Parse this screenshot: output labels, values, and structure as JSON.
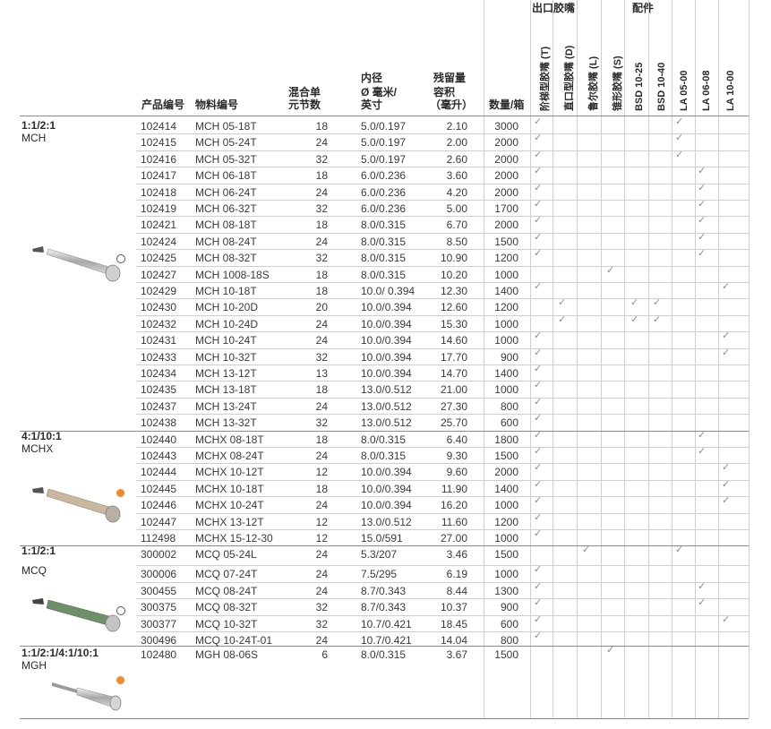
{
  "header": {
    "product_no": "产品编号",
    "material_no": "物料编号",
    "elements_l1": "混合单",
    "elements_l2": "元节数",
    "diameter_l1": "内径",
    "diameter_l2": "Ø 毫米/",
    "diameter_l3": "英寸",
    "hold_l1": "残留量",
    "hold_l2": "容积",
    "hold_l3": "（毫升）",
    "qty": "数量/箱",
    "outlet_group": "出口胶嘴",
    "accessory_group": "配件",
    "outlet_cols": [
      "阶梯型胶嘴 (T)",
      "直口型胶嘴 (D)",
      "鲁尔胶嘴 (L)",
      "锥形胶嘴 (S)"
    ],
    "accessory_cols": [
      "BSD 10-25",
      "BSD 10-40",
      "LA 05-00",
      "LA 06-08",
      "LA 10-00"
    ]
  },
  "check_mark": "✓",
  "groups": [
    {
      "ratio": "1:1/2:1",
      "name": "MCH",
      "dot": "open"
    },
    {
      "ratio": "4:1/10:1",
      "name": "MCHX",
      "dot": "fill"
    },
    {
      "ratio": "1:1/2:1",
      "name": "MCQ",
      "dot": "open"
    },
    {
      "ratio": "1:1/2:1/4:1/10:1",
      "name": "MGH",
      "dot": "fill"
    }
  ],
  "rows": [
    {
      "p": "102414",
      "m": "MCH 05-18T",
      "e": "18",
      "d": "5.0/0.197",
      "h": "2.10",
      "q": "3000",
      "c": [
        1,
        0,
        0,
        0,
        0,
        0,
        1,
        0,
        0
      ]
    },
    {
      "p": "102415",
      "m": "MCH 05-24T",
      "e": "24",
      "d": "5.0/0.197",
      "h": "2.00",
      "q": "2000",
      "c": [
        1,
        0,
        0,
        0,
        0,
        0,
        1,
        0,
        0
      ]
    },
    {
      "p": "102416",
      "m": "MCH 05-32T",
      "e": "32",
      "d": "5.0/0.197",
      "h": "2.60",
      "q": "2000",
      "c": [
        1,
        0,
        0,
        0,
        0,
        0,
        1,
        0,
        0
      ]
    },
    {
      "p": "102417",
      "m": "MCH 06-18T",
      "e": "18",
      "d": "6.0/0.236",
      "h": "3.60",
      "q": "2000",
      "c": [
        1,
        0,
        0,
        0,
        0,
        0,
        0,
        1,
        0
      ]
    },
    {
      "p": "102418",
      "m": "MCH 06-24T",
      "e": "24",
      "d": "6.0/0.236",
      "h": "4.20",
      "q": "2000",
      "c": [
        1,
        0,
        0,
        0,
        0,
        0,
        0,
        1,
        0
      ]
    },
    {
      "p": "102419",
      "m": "MCH 06-32T",
      "e": "32",
      "d": "6.0/0.236",
      "h": "5.00",
      "q": "1700",
      "c": [
        1,
        0,
        0,
        0,
        0,
        0,
        0,
        1,
        0
      ]
    },
    {
      "p": "102421",
      "m": "MCH 08-18T",
      "e": "18",
      "d": "8.0/0.315",
      "h": "6.70",
      "q": "2000",
      "c": [
        1,
        0,
        0,
        0,
        0,
        0,
        0,
        1,
        0
      ]
    },
    {
      "p": "102424",
      "m": "MCH 08-24T",
      "e": "24",
      "d": "8.0/0.315",
      "h": "8.50",
      "q": "1500",
      "c": [
        1,
        0,
        0,
        0,
        0,
        0,
        0,
        1,
        0
      ]
    },
    {
      "p": "102425",
      "m": "MCH 08-32T",
      "e": "32",
      "d": "8.0/0.315",
      "h": "10.90",
      "q": "1200",
      "c": [
        1,
        0,
        0,
        0,
        0,
        0,
        0,
        1,
        0
      ]
    },
    {
      "p": "102427",
      "m": "MCH 1008-18S",
      "e": "18",
      "d": "8.0/0.315",
      "h": "10.20",
      "q": "1000",
      "c": [
        0,
        0,
        0,
        1,
        0,
        0,
        0,
        0,
        0
      ]
    },
    {
      "p": "102429",
      "m": "MCH 10-18T",
      "e": "18",
      "d": "10.0/ 0.394",
      "h": "12.30",
      "q": "1400",
      "c": [
        1,
        0,
        0,
        0,
        0,
        0,
        0,
        0,
        1
      ]
    },
    {
      "p": "102430",
      "m": "MCH 10-20D",
      "e": "20",
      "d": "10.0/0.394",
      "h": "12.60",
      "q": "1200",
      "c": [
        0,
        1,
        0,
        0,
        1,
        1,
        0,
        0,
        0
      ]
    },
    {
      "p": "102432",
      "m": "MCH 10-24D",
      "e": "24",
      "d": "10.0/0.394",
      "h": "15.30",
      "q": "1000",
      "c": [
        0,
        1,
        0,
        0,
        1,
        1,
        0,
        0,
        0
      ]
    },
    {
      "p": "102431",
      "m": "MCH 10-24T",
      "e": "24",
      "d": "10.0/0.394",
      "h": "14.60",
      "q": "1000",
      "c": [
        1,
        0,
        0,
        0,
        0,
        0,
        0,
        0,
        1
      ]
    },
    {
      "p": "102433",
      "m": "MCH 10-32T",
      "e": "32",
      "d": "10.0/0.394",
      "h": "17.70",
      "q": "900",
      "c": [
        1,
        0,
        0,
        0,
        0,
        0,
        0,
        0,
        1
      ]
    },
    {
      "p": "102434",
      "m": "MCH 13-12T",
      "e": "13",
      "d": "10.0/0.394",
      "h": "14.70",
      "q": "1400",
      "c": [
        1,
        0,
        0,
        0,
        0,
        0,
        0,
        0,
        0
      ]
    },
    {
      "p": "102435",
      "m": "MCH 13-18T",
      "e": "18",
      "d": "13.0/0.512",
      "h": "21.00",
      "q": "1000",
      "c": [
        1,
        0,
        0,
        0,
        0,
        0,
        0,
        0,
        0
      ]
    },
    {
      "p": "102437",
      "m": "MCH 13-24T",
      "e": "24",
      "d": "13.0/0.512",
      "h": "27.30",
      "q": "800",
      "c": [
        1,
        0,
        0,
        0,
        0,
        0,
        0,
        0,
        0
      ]
    },
    {
      "p": "102438",
      "m": "MCH 13-32T",
      "e": "32",
      "d": "13.0/0.512",
      "h": "25.70",
      "q": "600",
      "c": [
        1,
        0,
        0,
        0,
        0,
        0,
        0,
        0,
        0
      ]
    },
    {
      "p": "102440",
      "m": "MCHX 08-18T",
      "e": "18",
      "d": "8.0/0.315",
      "h": "6.40",
      "q": "1800",
      "c": [
        1,
        0,
        0,
        0,
        0,
        0,
        0,
        1,
        0
      ]
    },
    {
      "p": "102443",
      "m": "MCHX 08-24T",
      "e": "24",
      "d": "8.0/0.315",
      "h": "9.30",
      "q": "1500",
      "c": [
        1,
        0,
        0,
        0,
        0,
        0,
        0,
        1,
        0
      ]
    },
    {
      "p": "102444",
      "m": "MCHX 10-12T",
      "e": "12",
      "d": "10.0/0.394",
      "h": "9.60",
      "q": "2000",
      "c": [
        1,
        0,
        0,
        0,
        0,
        0,
        0,
        0,
        1
      ]
    },
    {
      "p": "102445",
      "m": "MCHX 10-18T",
      "e": "18",
      "d": "10.0/0.394",
      "h": "11.90",
      "q": "1400",
      "c": [
        1,
        0,
        0,
        0,
        0,
        0,
        0,
        0,
        1
      ]
    },
    {
      "p": "102446",
      "m": "MCHX 10-24T",
      "e": "24",
      "d": "10.0/0.394",
      "h": "16.20",
      "q": "1000",
      "c": [
        1,
        0,
        0,
        0,
        0,
        0,
        0,
        0,
        1
      ]
    },
    {
      "p": "102447",
      "m": "MCHX 13-12T",
      "e": "12",
      "d": "13.0/0.512",
      "h": "11.60",
      "q": "1200",
      "c": [
        1,
        0,
        0,
        0,
        0,
        0,
        0,
        0,
        0
      ]
    },
    {
      "p": "112498",
      "m": "MCHX 15-12-30",
      "e": "12",
      "d": "15.0/591",
      "h": "27.00",
      "q": "1000",
      "c": [
        1,
        0,
        0,
        0,
        0,
        0,
        0,
        0,
        0
      ]
    },
    {
      "p": "300002",
      "m": "MCQ 05-24L",
      "e": "24",
      "d": "5.3/207",
      "h": "3.46",
      "q": "1500",
      "c": [
        0,
        0,
        1,
        0,
        0,
        0,
        1,
        0,
        0
      ]
    },
    {
      "p": "300006",
      "m": "MCQ 07-24T",
      "e": "24",
      "d": "7.5/295",
      "h": "6.19",
      "q": "1000",
      "c": [
        1,
        0,
        0,
        0,
        0,
        0,
        0,
        0,
        0
      ]
    },
    {
      "p": "300455",
      "m": "MCQ 08-24T",
      "e": "24",
      "d": "8.7/0.343",
      "h": "8.44",
      "q": "1300",
      "c": [
        1,
        0,
        0,
        0,
        0,
        0,
        0,
        1,
        0
      ]
    },
    {
      "p": "300375",
      "m": "MCQ 08-32T",
      "e": "32",
      "d": "8.7/0.343",
      "h": "10.37",
      "q": "900",
      "c": [
        1,
        0,
        0,
        0,
        0,
        0,
        0,
        1,
        0
      ]
    },
    {
      "p": "300377",
      "m": "MCQ 10-32T",
      "e": "32",
      "d": "10.7/0.421",
      "h": "18.45",
      "q": "600",
      "c": [
        1,
        0,
        0,
        0,
        0,
        0,
        0,
        0,
        1
      ]
    },
    {
      "p": "300496",
      "m": "MCQ 10-24T-01",
      "e": "24",
      "d": "10.7/0.421",
      "h": "14.04",
      "q": "800",
      "c": [
        1,
        0,
        0,
        0,
        0,
        0,
        0,
        0,
        0
      ]
    },
    {
      "p": "102480",
      "m": "MGH 08-06S",
      "e": "6",
      "d": "8.0/0.315",
      "h": "3.67",
      "q": "1500",
      "c": [
        0,
        0,
        0,
        1,
        0,
        0,
        0,
        0,
        0
      ]
    }
  ]
}
